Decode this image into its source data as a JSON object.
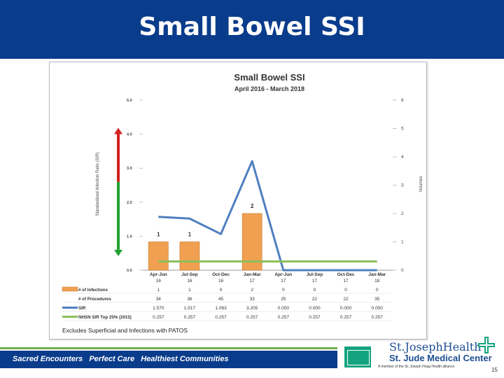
{
  "slide": {
    "title": "Small Bowel SSI",
    "page_number": "15"
  },
  "footer": {
    "tagline": [
      "Sacred Encounters",
      "Perfect Care",
      "Healthiest Communities"
    ],
    "org_name": "St.JosephHealth",
    "center_name": "St. Jude Medical Center",
    "member_line": "A member of the St. Joseph Hoag Health alliance",
    "colors": {
      "bar": "#0a3c8c",
      "stripe": "#6ab04c",
      "logo_green": "#14a37f"
    }
  },
  "chart_data": {
    "type": "bar",
    "title": "Small Bowel SSI",
    "subtitle": "April 2016 - March 2018",
    "categories": [
      "Apr-Jun",
      "Jul-Sep",
      "Oct-Dec",
      "Jan-Mar",
      "Apr-Jun",
      "Jul-Sep",
      "Oct-Dec",
      "Jan-Mar"
    ],
    "ylabel": "Standardized Infection Ratio (SIR)",
    "y2label": "Volumes",
    "ylim": [
      0,
      5
    ],
    "y2lim": [
      0,
      6
    ],
    "yticks": [
      "0.0",
      "1.0",
      "2.0",
      "3.0",
      "4.0",
      "5.0"
    ],
    "y2ticks": [
      "0",
      "1",
      "2",
      "3",
      "4",
      "5",
      "6"
    ],
    "series": [
      {
        "name": "# of Infections",
        "kind": "bar",
        "axis": "right",
        "color": "#f0a050",
        "values": [
          1,
          1,
          0,
          2,
          0,
          0,
          0,
          0
        ],
        "display": [
          "1",
          "1",
          "0",
          "2",
          "0",
          "0",
          "0",
          "0"
        ]
      },
      {
        "name": "# of Procedures",
        "kind": "table",
        "values": [
          34,
          36,
          45,
          33,
          25,
          22,
          22,
          35
        ],
        "display": [
          "34",
          "36",
          "45",
          "33",
          "25",
          "22",
          "22",
          "35"
        ]
      },
      {
        "name": "SIR",
        "kind": "line",
        "axis": "left",
        "color": "#4f7fc0",
        "values": [
          1.57,
          1.517,
          1.063,
          3.205,
          0.0,
          0.0,
          0.0,
          0.0
        ],
        "display": [
          "1.570",
          "1.517",
          "1.063",
          "3.205",
          "0.000",
          "0.000",
          "0.000",
          "0.000"
        ]
      },
      {
        "name": "NHSN SIR Top 25% (2015)",
        "kind": "line",
        "axis": "left",
        "color": "#8cbf5a",
        "values": [
          0.257,
          0.257,
          0.257,
          0.257,
          0.257,
          0.257,
          0.257,
          0.257
        ],
        "display": [
          "0.257",
          "0.257",
          "0.257",
          "0.257",
          "0.257",
          "0.257",
          "0.257",
          "0.257"
        ]
      }
    ],
    "header_row": [
      "16",
      "16",
      "16",
      "17",
      "17",
      "17",
      "17",
      "18"
    ],
    "bar_labels": [
      "1",
      "1",
      "",
      "2",
      "",
      "",
      "",
      ""
    ],
    "note": "Excludes Superficial and Infections with PATOS",
    "colors": {
      "arrow_red": "#d22020",
      "arrow_green": "#22a030"
    }
  }
}
